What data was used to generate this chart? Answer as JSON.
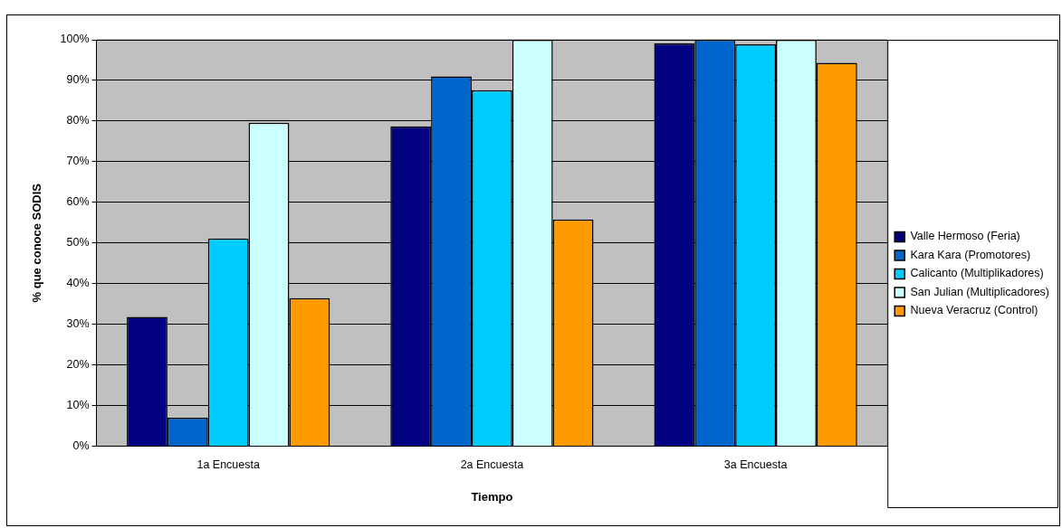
{
  "chart_data": {
    "type": "bar",
    "xlabel": "Tiempo",
    "ylabel": "% que conoce SODIS",
    "categories": [
      "1a Encuesta",
      "2a Encuesta",
      "3a Encuesta"
    ],
    "series": [
      {
        "name": "Valle Hermoso (Feria)",
        "color": "#000080",
        "values": [
          31.8,
          78.7,
          99.1
        ]
      },
      {
        "name": "Kara Kara (Promotores)",
        "color": "#0066cc",
        "values": [
          7.0,
          91.0,
          100
        ]
      },
      {
        "name": "Calicanto (Multiplikadores)",
        "color": "#00ccff",
        "values": [
          51.1,
          87.6,
          98.9
        ]
      },
      {
        "name": "San Julian (Multiplicadores)",
        "color": "#ccffff",
        "values": [
          79.6,
          100,
          100
        ]
      },
      {
        "name": "Nueva Veracruz (Control)",
        "color": "#ff9900",
        "values": [
          36.4,
          55.8,
          94.3
        ]
      }
    ],
    "ylim": [
      0,
      100
    ],
    "yticks": [
      {
        "value": 0,
        "label": "0%"
      },
      {
        "value": 10,
        "label": "10%"
      },
      {
        "value": 20,
        "label": "20%"
      },
      {
        "value": 30,
        "label": "30%"
      },
      {
        "value": 40,
        "label": "40%"
      },
      {
        "value": 50,
        "label": "50%"
      },
      {
        "value": 60,
        "label": "60%"
      },
      {
        "value": 70,
        "label": "70%"
      },
      {
        "value": 80,
        "label": "80%"
      },
      {
        "value": 90,
        "label": "90%"
      },
      {
        "value": 100,
        "label": "100%"
      }
    ],
    "grid": "y",
    "legend": "right"
  }
}
